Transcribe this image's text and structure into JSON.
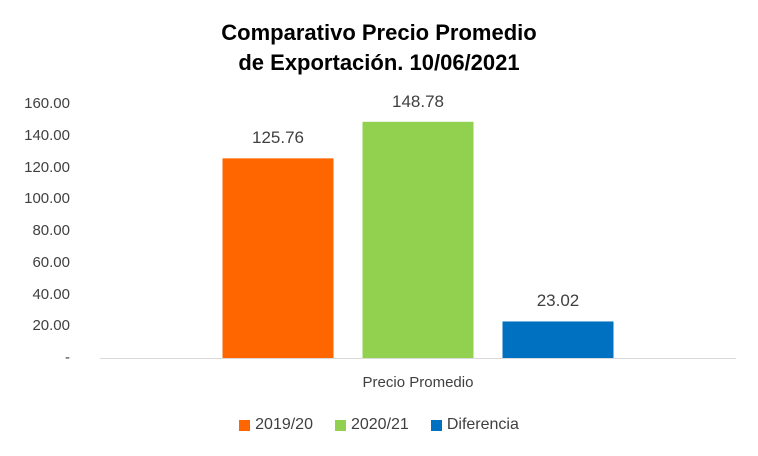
{
  "chart_data": {
    "type": "bar",
    "title": [
      "Comparativo Precio Promedio",
      "de Exportación. 10/06/2021"
    ],
    "categories": [
      "Precio Promedio"
    ],
    "series": [
      {
        "name": "2019/20",
        "values": [
          125.76
        ],
        "color": "#ff6600",
        "label": "125.76"
      },
      {
        "name": "2020/21",
        "values": [
          148.78
        ],
        "color": "#92d050",
        "label": "148.78"
      },
      {
        "name": "Diferencia",
        "values": [
          23.02
        ],
        "color": "#0070c0",
        "label": "23.02"
      }
    ],
    "ylim": [
      0,
      160
    ],
    "yticks": [
      "-",
      "20.00",
      "40.00",
      "60.00",
      "80.00",
      "100.00",
      "120.00",
      "140.00",
      "160.00"
    ],
    "xlabel": "",
    "ylabel": "",
    "grid": false,
    "legend": "bottom"
  }
}
